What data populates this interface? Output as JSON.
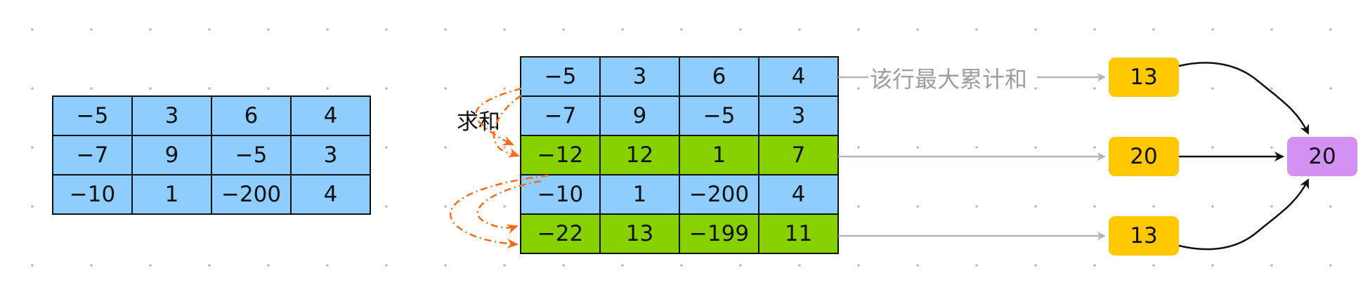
{
  "left_grid": [
    [
      "−5",
      "3",
      "6",
      "4"
    ],
    [
      "−7",
      "9",
      "−5",
      "3"
    ],
    [
      "−10",
      "1",
      "−200",
      "4"
    ]
  ],
  "right_grid": [
    [
      "−5",
      "3",
      "6",
      "4"
    ],
    [
      "−7",
      "9",
      "−5",
      "3"
    ],
    [
      "−12",
      "12",
      "1",
      "7"
    ],
    [
      "−10",
      "1",
      "−200",
      "4"
    ],
    [
      "−22",
      "13",
      "−199",
      "11"
    ]
  ],
  "highlighted_rows": [
    2,
    4
  ],
  "labels": {
    "sum": "求和",
    "row_max": "该行最大累计和"
  },
  "row_max_values": [
    "13",
    "20",
    "13"
  ],
  "result": "20",
  "colors": {
    "cell": "#8ecdfd",
    "highlight": "#88d100",
    "row_max_box": "#ffc800",
    "result_box": "#d291f3",
    "dashed_arrow": "#ff6a13",
    "gray_arrow": "#b5b5b5"
  }
}
